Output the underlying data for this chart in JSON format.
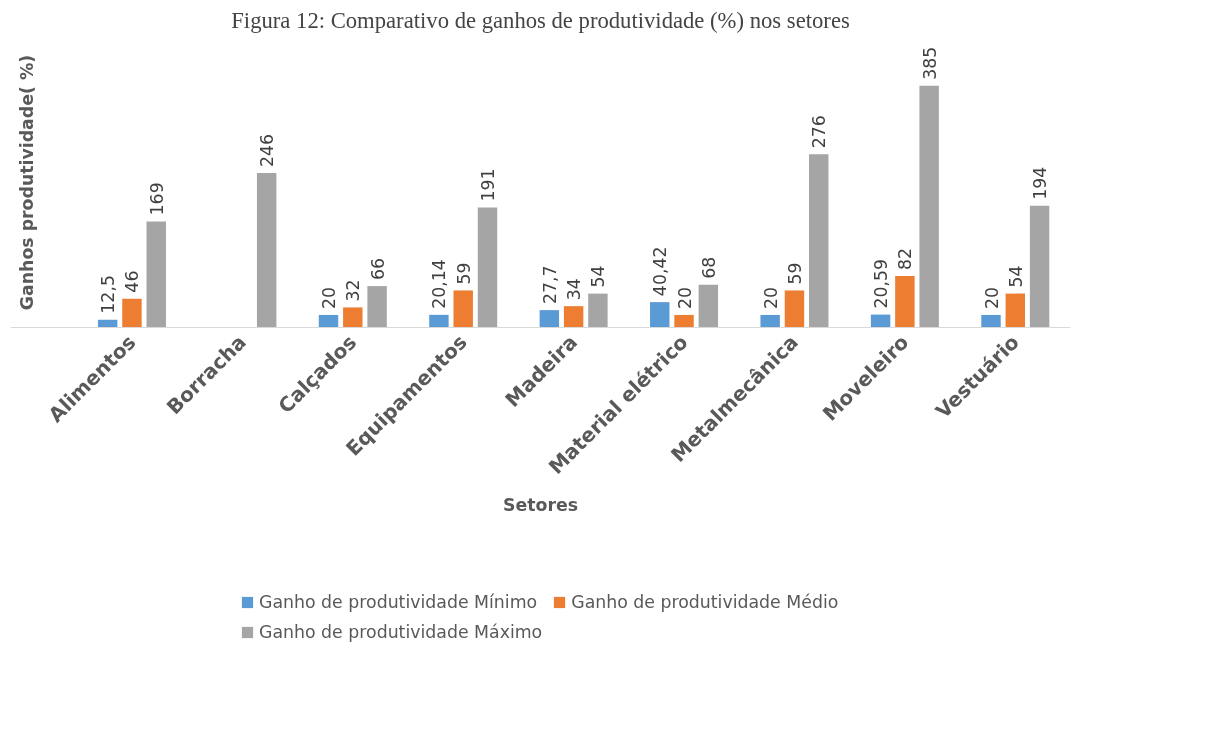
{
  "chart_data": {
    "type": "bar",
    "title": "Figura 12: Comparativo de ganhos de produtividade (%) nos setores",
    "xlabel": "Setores",
    "ylabel": "Ganhos produtividade( %)",
    "categories": [
      "Alimentos",
      "Borracha",
      "Calçados",
      "Equipamentos",
      "Madeira",
      "Material elétrico",
      "Metalmecânica",
      "Moveleiro",
      "Vestuário"
    ],
    "series": [
      {
        "name": "Ganho de produtividade Mínimo",
        "color": "#5b9bd5",
        "values": [
          12.5,
          null,
          20,
          20.14,
          27.7,
          40.42,
          20,
          20.59,
          20
        ],
        "value_labels": [
          "12,5",
          null,
          "20",
          "20,14",
          "27,7",
          "40,42",
          "20",
          "20,59",
          "20"
        ]
      },
      {
        "name": "Ganho de produtividade Médio",
        "color": "#ed7d31",
        "values": [
          46,
          null,
          32,
          59,
          34,
          20,
          59,
          82,
          54
        ],
        "value_labels": [
          "46",
          null,
          "32",
          "59",
          "34",
          "20",
          "59",
          "82",
          "54"
        ]
      },
      {
        "name": "Ganho de produtividade Máximo",
        "color": "#a5a5a5",
        "values": [
          169,
          246,
          66,
          191,
          54,
          68,
          276,
          385,
          194
        ],
        "value_labels": [
          "169",
          "246",
          "66",
          "191",
          "54",
          "68",
          "276",
          "385",
          "194"
        ]
      }
    ],
    "legend": "bottom"
  }
}
